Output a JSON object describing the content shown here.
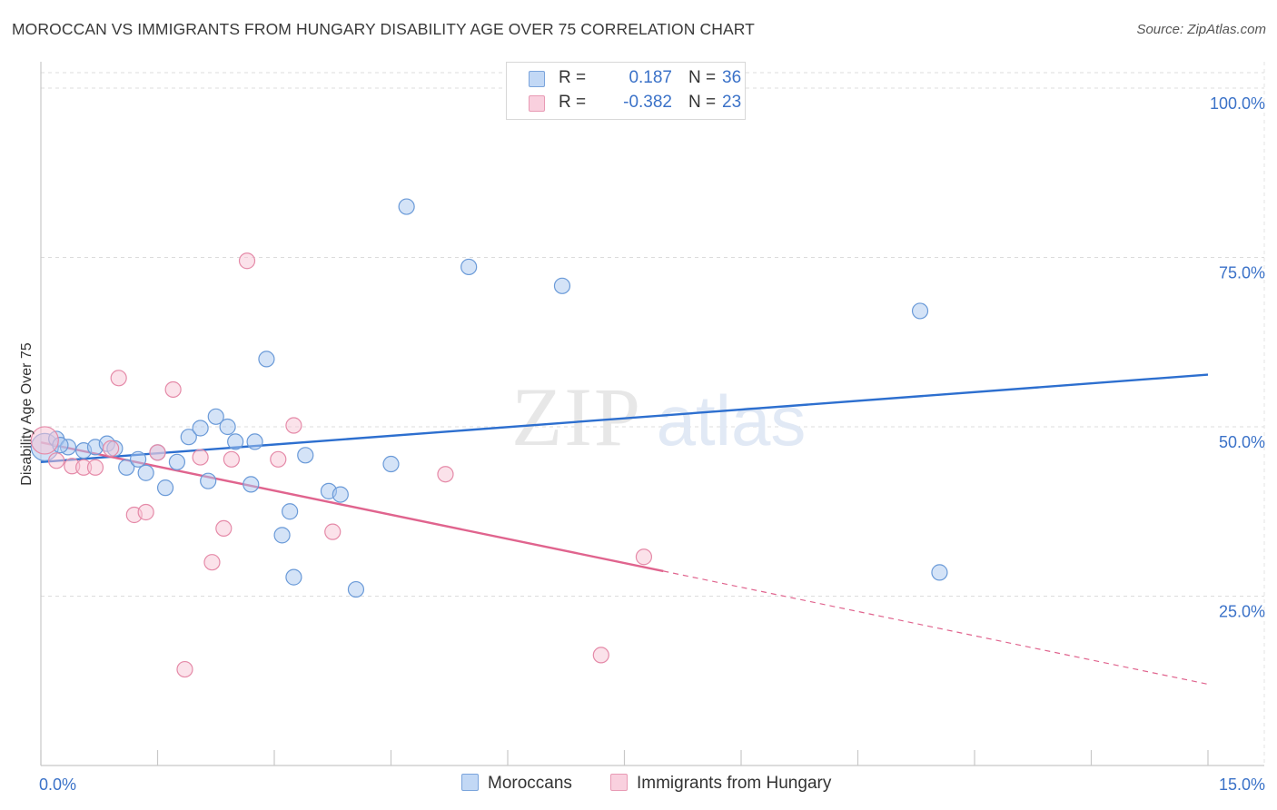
{
  "title": "MOROCCAN VS IMMIGRANTS FROM HUNGARY DISABILITY AGE OVER 75 CORRELATION CHART",
  "source": "Source: ZipAtlas.com",
  "watermark": {
    "zip": "ZIP",
    "atlas": "atlas"
  },
  "legend_top": [
    {
      "r_label": "R =",
      "r_value": "0.187",
      "n_label": "N =",
      "n_value": "36"
    },
    {
      "r_label": "R =",
      "r_value": "-0.382",
      "n_label": "N =",
      "n_value": "23"
    }
  ],
  "chart_data": {
    "type": "scatter",
    "title": "MOROCCAN VS IMMIGRANTS FROM HUNGARY DISABILITY AGE OVER 75 CORRELATION CHART",
    "xlabel": "",
    "ylabel": "Disability Age Over 75",
    "xlim": [
      0,
      15
    ],
    "ylim": [
      0,
      105
    ],
    "x_tick_labels": [
      "0.0%",
      "15.0%"
    ],
    "y_ticks": [
      25,
      50,
      75,
      100
    ],
    "y_tick_labels": [
      "25.0%",
      "50.0%",
      "75.0%",
      "100.0%"
    ],
    "grid": true,
    "legend_position": "bottom",
    "series": [
      {
        "name": "Moroccans",
        "color": "#a9c8f0",
        "stroke": "#6a9ad8",
        "line_color": "#2d6fcf",
        "r": 0.187,
        "n": 36,
        "trend": {
          "x": [
            0,
            15
          ],
          "y": [
            44.8,
            57.7
          ]
        },
        "points": [
          {
            "x": 0.05,
            "y": 47.0,
            "big": true
          },
          {
            "x": 0.2,
            "y": 48.2
          },
          {
            "x": 0.35,
            "y": 47.0
          },
          {
            "x": 0.55,
            "y": 46.5
          },
          {
            "x": 0.7,
            "y": 47.0
          },
          {
            "x": 0.85,
            "y": 47.5
          },
          {
            "x": 0.95,
            "y": 46.8
          },
          {
            "x": 1.1,
            "y": 44.0
          },
          {
            "x": 1.25,
            "y": 45.2
          },
          {
            "x": 1.35,
            "y": 43.2
          },
          {
            "x": 1.5,
            "y": 46.2
          },
          {
            "x": 1.6,
            "y": 41.0
          },
          {
            "x": 1.75,
            "y": 44.8
          },
          {
            "x": 1.9,
            "y": 48.5
          },
          {
            "x": 2.05,
            "y": 49.8
          },
          {
            "x": 2.15,
            "y": 42.0
          },
          {
            "x": 2.25,
            "y": 51.5
          },
          {
            "x": 2.4,
            "y": 50.0
          },
          {
            "x": 2.5,
            "y": 47.8
          },
          {
            "x": 2.7,
            "y": 41.5
          },
          {
            "x": 2.75,
            "y": 47.8
          },
          {
            "x": 2.9,
            "y": 60.0
          },
          {
            "x": 3.1,
            "y": 34.0
          },
          {
            "x": 3.2,
            "y": 37.5
          },
          {
            "x": 3.25,
            "y": 27.8
          },
          {
            "x": 3.4,
            "y": 45.8
          },
          {
            "x": 3.7,
            "y": 40.5
          },
          {
            "x": 3.85,
            "y": 40.0
          },
          {
            "x": 4.05,
            "y": 26.0
          },
          {
            "x": 4.5,
            "y": 44.5
          },
          {
            "x": 4.7,
            "y": 82.5
          },
          {
            "x": 5.5,
            "y": 73.6
          },
          {
            "x": 6.7,
            "y": 70.8
          },
          {
            "x": 11.3,
            "y": 67.1
          },
          {
            "x": 11.55,
            "y": 28.5
          },
          {
            "x": 0.25,
            "y": 47.3
          }
        ]
      },
      {
        "name": "Immigrants from Hungary",
        "color": "#f7c5d5",
        "stroke": "#e58aa8",
        "line_color": "#e0648e",
        "r": -0.382,
        "n": 23,
        "trend": {
          "x": [
            0,
            8.0
          ],
          "y": [
            47.7,
            28.7
          ]
        },
        "trend_dashed": {
          "x": [
            8.0,
            15
          ],
          "y": [
            28.7,
            12.0
          ]
        },
        "points": [
          {
            "x": 0.05,
            "y": 48.0,
            "big": true
          },
          {
            "x": 0.2,
            "y": 45.0
          },
          {
            "x": 0.4,
            "y": 44.2
          },
          {
            "x": 0.55,
            "y": 44.0
          },
          {
            "x": 0.7,
            "y": 44.0
          },
          {
            "x": 0.9,
            "y": 46.8
          },
          {
            "x": 1.0,
            "y": 57.2
          },
          {
            "x": 1.2,
            "y": 37.0
          },
          {
            "x": 1.35,
            "y": 37.4
          },
          {
            "x": 1.5,
            "y": 46.2
          },
          {
            "x": 1.7,
            "y": 55.5
          },
          {
            "x": 1.85,
            "y": 14.2
          },
          {
            "x": 2.05,
            "y": 45.5
          },
          {
            "x": 2.2,
            "y": 30.0
          },
          {
            "x": 2.35,
            "y": 35.0
          },
          {
            "x": 2.45,
            "y": 45.2
          },
          {
            "x": 2.65,
            "y": 74.5
          },
          {
            "x": 3.05,
            "y": 45.2
          },
          {
            "x": 3.25,
            "y": 50.2
          },
          {
            "x": 3.75,
            "y": 34.5
          },
          {
            "x": 5.2,
            "y": 43.0
          },
          {
            "x": 7.2,
            "y": 16.3
          },
          {
            "x": 7.75,
            "y": 30.8
          }
        ]
      }
    ]
  }
}
